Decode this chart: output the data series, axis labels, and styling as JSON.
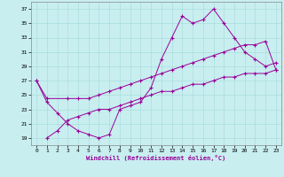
{
  "xlabel": "Windchill (Refroidissement éolien,°C)",
  "background_color": "#c8eef0",
  "grid_color": "#aadddd",
  "line_color": "#990099",
  "xlim": [
    -0.5,
    23.5
  ],
  "ylim": [
    18,
    38
  ],
  "yticks": [
    19,
    21,
    23,
    25,
    27,
    29,
    31,
    33,
    35,
    37
  ],
  "xticks": [
    0,
    1,
    2,
    3,
    4,
    5,
    6,
    7,
    8,
    9,
    10,
    11,
    12,
    13,
    14,
    15,
    16,
    17,
    18,
    19,
    20,
    21,
    22,
    23
  ],
  "line1_x": [
    0,
    1,
    2,
    3,
    4,
    5,
    6,
    7,
    8,
    9,
    10,
    11,
    12,
    13,
    14,
    15,
    16,
    17,
    18,
    19,
    20,
    21,
    22,
    23
  ],
  "line1_y": [
    27,
    24,
    22.5,
    21,
    20,
    19.5,
    19,
    19.5,
    23,
    23.5,
    24,
    26,
    30,
    33,
    36,
    35,
    35.5,
    37,
    35,
    33,
    31,
    30,
    29,
    29.5
  ],
  "line2_x": [
    0,
    1,
    3,
    4,
    5,
    6,
    7,
    8,
    9,
    10,
    11,
    12,
    13,
    14,
    15,
    16,
    17,
    18,
    19,
    20,
    21,
    22,
    23
  ],
  "line2_y": [
    27,
    24.5,
    24.5,
    24.5,
    24.5,
    25,
    25.5,
    26,
    26.5,
    27,
    27.5,
    28,
    28.5,
    29,
    29.5,
    30,
    30.5,
    31,
    31.5,
    32,
    32,
    32.5,
    28.5
  ],
  "line3_x": [
    1,
    2,
    3,
    4,
    5,
    6,
    7,
    8,
    9,
    10,
    11,
    12,
    13,
    14,
    15,
    16,
    17,
    18,
    19,
    20,
    21,
    22,
    23
  ],
  "line3_y": [
    19,
    20,
    21.5,
    22,
    22.5,
    23,
    23,
    23.5,
    24,
    24.5,
    25,
    25.5,
    25.5,
    26,
    26.5,
    26.5,
    27,
    27.5,
    27.5,
    28,
    28,
    28,
    28.5
  ]
}
